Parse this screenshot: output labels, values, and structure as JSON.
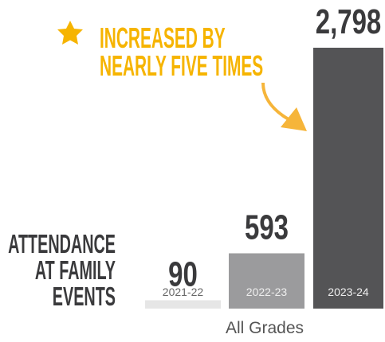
{
  "chart_data": {
    "type": "bar",
    "annotation": [
      "INCREASED BY",
      "NEARLY FIVE TIMES"
    ],
    "ylabel": [
      "ATTENDANCE",
      "AT FAMILY",
      "EVENTS"
    ],
    "xlabel": "All Grades",
    "categories": [
      "2021-22",
      "2022-23",
      "2023-24"
    ],
    "values": [
      90,
      593,
      2798
    ],
    "value_labels": [
      "90",
      "593",
      "2,798"
    ],
    "colors": [
      "#e6e6e6",
      "#9b9b9d",
      "#545456"
    ]
  }
}
